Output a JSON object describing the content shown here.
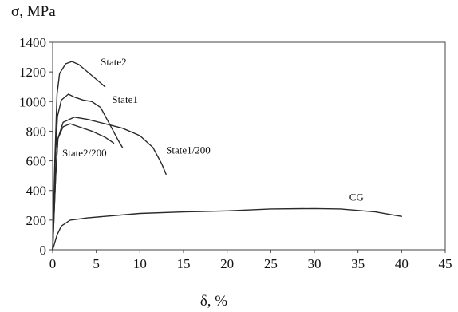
{
  "chart_data": {
    "type": "line",
    "ylabel": "σ, MPa",
    "xlabel": "δ, %",
    "xlim": [
      0,
      45
    ],
    "ylim": [
      0,
      1400
    ],
    "xticks": [
      0,
      5,
      10,
      15,
      20,
      25,
      30,
      35,
      40,
      45
    ],
    "yticks": [
      0,
      200,
      400,
      600,
      800,
      1000,
      1200,
      1400
    ],
    "grid": false,
    "legend": "inline-labels",
    "series": [
      {
        "name": "State2",
        "points": [
          [
            0,
            0
          ],
          [
            0.25,
            600
          ],
          [
            0.5,
            1050
          ],
          [
            0.8,
            1190
          ],
          [
            1.5,
            1255
          ],
          [
            2.2,
            1270
          ],
          [
            3,
            1250
          ],
          [
            4,
            1200
          ],
          [
            5,
            1150
          ],
          [
            6,
            1100
          ]
        ]
      },
      {
        "name": "State1",
        "points": [
          [
            0,
            0
          ],
          [
            0.3,
            600
          ],
          [
            0.55,
            900
          ],
          [
            1,
            1010
          ],
          [
            1.8,
            1050
          ],
          [
            2.5,
            1030
          ],
          [
            3.5,
            1010
          ],
          [
            4.5,
            1000
          ],
          [
            5.5,
            960
          ],
          [
            6.5,
            850
          ],
          [
            7.5,
            740
          ],
          [
            8,
            690
          ]
        ]
      },
      {
        "name": "State1/200",
        "points": [
          [
            0,
            0
          ],
          [
            0.35,
            500
          ],
          [
            0.6,
            750
          ],
          [
            1.2,
            860
          ],
          [
            2.5,
            895
          ],
          [
            4,
            880
          ],
          [
            6,
            850
          ],
          [
            8,
            820
          ],
          [
            10,
            770
          ],
          [
            11.5,
            690
          ],
          [
            12.5,
            580
          ],
          [
            13,
            510
          ]
        ]
      },
      {
        "name": "State2/200",
        "points": [
          [
            0,
            0
          ],
          [
            0.35,
            500
          ],
          [
            0.6,
            750
          ],
          [
            1.2,
            830
          ],
          [
            2,
            850
          ],
          [
            3,
            830
          ],
          [
            4.5,
            800
          ],
          [
            6,
            760
          ],
          [
            7,
            720
          ]
        ]
      },
      {
        "name": "CG",
        "points": [
          [
            0,
            0
          ],
          [
            0.5,
            100
          ],
          [
            1,
            160
          ],
          [
            2,
            200
          ],
          [
            4,
            215
          ],
          [
            6,
            225
          ],
          [
            10,
            245
          ],
          [
            15,
            255
          ],
          [
            20,
            262
          ],
          [
            25,
            275
          ],
          [
            30,
            278
          ],
          [
            33,
            275
          ],
          [
            37,
            255
          ],
          [
            39,
            235
          ],
          [
            40,
            225
          ]
        ]
      }
    ],
    "labels": [
      {
        "series": "State2",
        "text": "State2",
        "at": [
          5.5,
          1245
        ]
      },
      {
        "series": "State1",
        "text": "State1",
        "at": [
          6.8,
          990
        ]
      },
      {
        "series": "State1/200",
        "text": "State1/200",
        "at": [
          13,
          650
        ]
      },
      {
        "series": "State2/200",
        "text": "State2/200",
        "at": [
          1.1,
          630
        ]
      },
      {
        "series": "CG",
        "text": "CG",
        "at": [
          34,
          330
        ]
      }
    ]
  }
}
